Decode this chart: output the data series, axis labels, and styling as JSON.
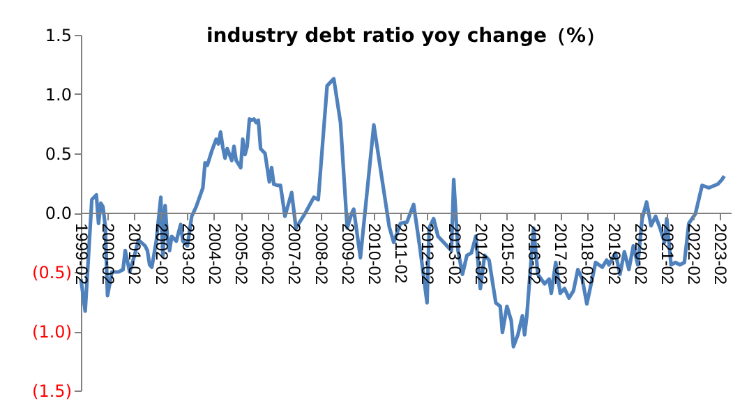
{
  "chart_data": {
    "type": "line",
    "title": "industry debt ratio yoy change（%）",
    "x": [
      "1999-02",
      "1999-04",
      "1999-07",
      "1999-09",
      "1999-10",
      "1999-11",
      "1999-12",
      "2000-01",
      "2000-02",
      "2000-04",
      "2000-07",
      "2000-09",
      "2000-10",
      "2000-12",
      "2001-02",
      "2001-04",
      "2001-07",
      "2001-08",
      "2001-09",
      "2001-10",
      "2001-12",
      "2002-02",
      "2002-03",
      "2002-04",
      "2002-05",
      "2002-06",
      "2002-07",
      "2002-09",
      "2002-11",
      "2002-12",
      "2003-02",
      "2003-04",
      "2003-06",
      "2003-09",
      "2003-10",
      "2003-11",
      "2004-01",
      "2004-03",
      "2004-04",
      "2004-05",
      "2004-06",
      "2004-07",
      "2004-08",
      "2004-10",
      "2004-11",
      "2004-12",
      "2005-02",
      "2005-03",
      "2005-04",
      "2005-05",
      "2005-06",
      "2005-07",
      "2005-08",
      "2005-09",
      "2005-10",
      "2005-11",
      "2006-01",
      "2006-03",
      "2006-04",
      "2006-05",
      "2006-07",
      "2006-08",
      "2006-10",
      "2007-01",
      "2007-03",
      "2007-07",
      "2007-11",
      "2008-01",
      "2008-05",
      "2008-08",
      "2008-11",
      "2009-02",
      "2009-04",
      "2009-05",
      "2009-08",
      "2010-02",
      "2010-09",
      "2010-11",
      "2011-02",
      "2011-05",
      "2011-08",
      "2011-11",
      "2012-02",
      "2012-03",
      "2012-05",
      "2012-07",
      "2012-11",
      "2013-01",
      "2013-02",
      "2013-04",
      "2013-06",
      "2013-08",
      "2013-10",
      "2013-12",
      "2014-02",
      "2014-04",
      "2014-06",
      "2014-09",
      "2014-11",
      "2014-12",
      "2015-02",
      "2015-04",
      "2015-05",
      "2015-07",
      "2015-09",
      "2015-10",
      "2015-11",
      "2016-02",
      "2016-04",
      "2016-07",
      "2016-09",
      "2016-10",
      "2016-12",
      "2017-02",
      "2017-04",
      "2017-06",
      "2017-08",
      "2017-10",
      "2017-12",
      "2018-02",
      "2018-04",
      "2018-06",
      "2018-09",
      "2018-11",
      "2018-12",
      "2019-03",
      "2019-05",
      "2019-07",
      "2019-09",
      "2019-11",
      "2020-01",
      "2020-03",
      "2020-05",
      "2020-07",
      "2020-09",
      "2020-11",
      "2021-01",
      "2021-02",
      "2021-04",
      "2021-06",
      "2021-08",
      "2021-10",
      "2021-12",
      "2022-03",
      "2022-06",
      "2022-09",
      "2023-01",
      "2023-03",
      "2023-04"
    ],
    "series": [
      {
        "color": "#4f81bd",
        "values": [
          -0.56,
          -0.83,
          0.11,
          0.15,
          -0.09,
          0.08,
          0.05,
          -0.11,
          -0.7,
          -0.5,
          -0.5,
          -0.48,
          -0.32,
          -0.5,
          -0.37,
          -0.23,
          -0.28,
          -0.32,
          -0.44,
          -0.46,
          -0.24,
          0.13,
          -0.37,
          0.06,
          -0.2,
          -0.32,
          -0.2,
          -0.24,
          -0.1,
          -0.24,
          -0.28,
          -0.03,
          0.05,
          0.21,
          0.42,
          0.4,
          0.52,
          0.62,
          0.58,
          0.68,
          0.55,
          0.46,
          0.54,
          0.44,
          0.56,
          0.44,
          0.38,
          0.62,
          0.49,
          0.56,
          0.79,
          0.78,
          0.79,
          0.76,
          0.78,
          0.54,
          0.5,
          0.26,
          0.38,
          0.24,
          0.23,
          0.23,
          -0.03,
          0.17,
          -0.13,
          -0.01,
          0.13,
          0.11,
          1.07,
          1.13,
          0.76,
          -0.13,
          -0.01,
          0.03,
          -0.38,
          0.74,
          -0.12,
          -0.25,
          -0.09,
          -0.08,
          0.07,
          -0.32,
          -0.76,
          -0.13,
          -0.05,
          -0.2,
          -0.28,
          -0.32,
          0.28,
          -0.32,
          -0.52,
          -0.36,
          -0.34,
          -0.2,
          -0.64,
          -0.36,
          -0.4,
          -0.76,
          -0.79,
          -1.01,
          -0.79,
          -0.91,
          -1.13,
          -1.03,
          -0.87,
          -1.03,
          -0.87,
          -0.13,
          -0.52,
          -0.6,
          -0.56,
          -0.68,
          -0.42,
          -0.68,
          -0.64,
          -0.72,
          -0.66,
          -0.48,
          -0.56,
          -0.77,
          -0.6,
          -0.42,
          -0.46,
          -0.4,
          -0.44,
          -0.34,
          -0.52,
          -0.33,
          -0.48,
          -0.28,
          -0.44,
          -0.05,
          0.09,
          -0.11,
          -0.03,
          -0.13,
          -0.25,
          -0.05,
          -0.44,
          -0.42,
          -0.44,
          -0.42,
          -0.09,
          -0.01,
          0.23,
          0.21,
          0.24,
          0.28,
          0.31
        ]
      }
    ],
    "xlim": [
      "1999-02",
      "2023-07"
    ],
    "xticks": [
      "1999-02",
      "2000-02",
      "2001-02",
      "2002-02",
      "2003-02",
      "2004-02",
      "2005-02",
      "2006-02",
      "2007-02",
      "2008-02",
      "2009-02",
      "2010-02",
      "2011-02",
      "2012-02",
      "2013-02",
      "2014-02",
      "2015-02",
      "2016-02",
      "2017-02",
      "2018-02",
      "2019-02",
      "2020-02",
      "2021-02",
      "2022-02",
      "2023-02"
    ],
    "ylim": [
      -1.5,
      1.5
    ],
    "yticks": [
      {
        "value": -1.5,
        "label": "(1.5)"
      },
      {
        "value": -1.0,
        "label": "(1.0)"
      },
      {
        "value": -0.5,
        "label": "(0.5)"
      },
      {
        "value": 0,
        "label": "0.0"
      },
      {
        "value": 0.5,
        "label": "0.5"
      },
      {
        "value": 1.0,
        "label": "1.0"
      },
      {
        "value": 1.5,
        "label": "1.5"
      }
    ]
  }
}
